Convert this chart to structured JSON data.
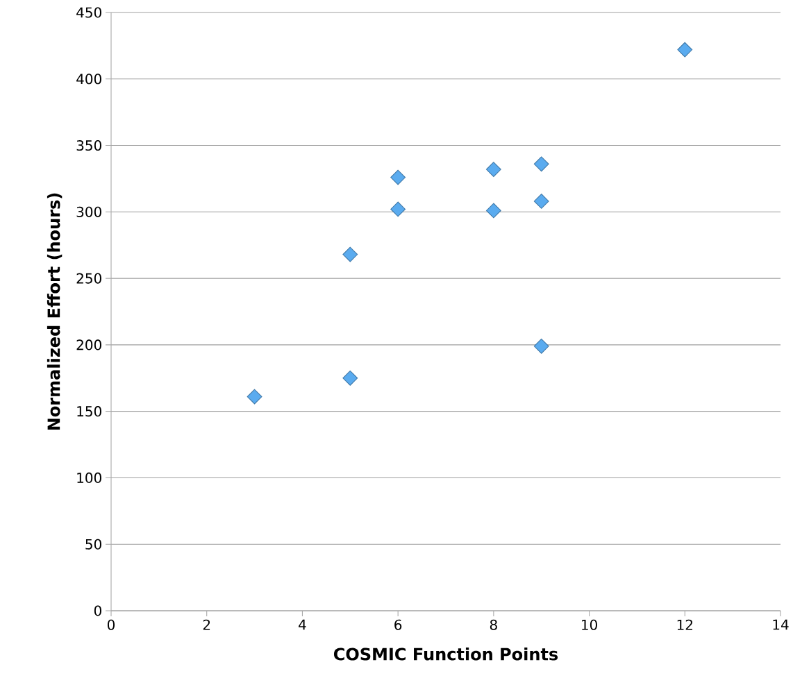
{
  "chart_data": {
    "type": "scatter",
    "xlabel": "COSMIC Function Points",
    "ylabel": "Normalized Effort (hours)",
    "x": [
      3,
      5,
      5,
      6,
      6,
      8,
      8,
      9,
      9,
      9,
      12
    ],
    "values": [
      161,
      175,
      268,
      302,
      326,
      332,
      301,
      336,
      308,
      199,
      422
    ],
    "color": "#5aabef",
    "marker": "diamond",
    "xlim": [
      0,
      14
    ],
    "xticks": [
      0,
      2,
      4,
      6,
      8,
      10,
      12,
      14
    ],
    "ylim": [
      0,
      450
    ],
    "yticks": [
      0,
      50,
      100,
      150,
      200,
      250,
      300,
      350,
      400,
      450
    ],
    "grid": "y"
  }
}
